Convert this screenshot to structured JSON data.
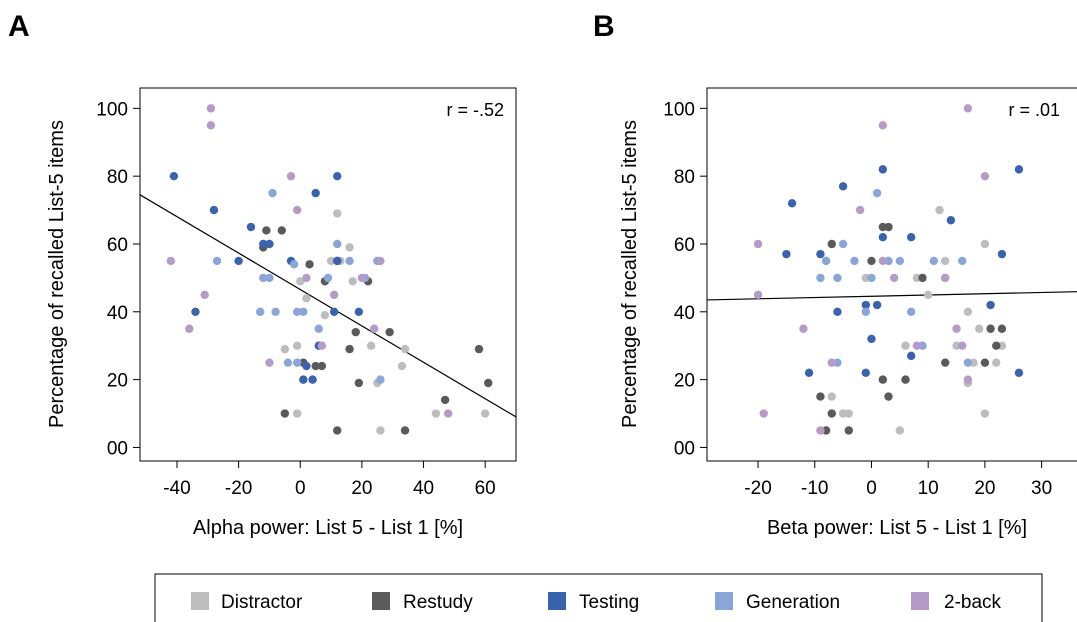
{
  "chart_data": [
    {
      "panel_label": "A",
      "type": "scatter",
      "xlabel": "Alpha power: List 5 - List 1 [%]",
      "ylabel": "Percentage of recalled List-5 items",
      "annotation": "r = -.52",
      "xlim": [
        -52,
        70
      ],
      "ylim": [
        -4,
        106
      ],
      "xticks": [
        -40,
        -20,
        0,
        20,
        40,
        60
      ],
      "xtick_labels": [
        "-40",
        "-20",
        "0",
        "20",
        "40",
        "60"
      ],
      "yticks": [
        0,
        20,
        40,
        60,
        80,
        100
      ],
      "ytick_labels": [
        "00",
        "20",
        "40",
        "60",
        "80",
        "100"
      ],
      "regression_line": {
        "x": [
          -52,
          70
        ],
        "y": [
          74.5,
          9
        ]
      },
      "series": [
        {
          "name": "Distractor",
          "points": [
            [
              -1,
              30
            ],
            [
              -5,
              29
            ],
            [
              -1,
              25
            ],
            [
              -1,
              10
            ],
            [
              0,
              49
            ],
            [
              2,
              44
            ],
            [
              8,
              39
            ],
            [
              10,
              55
            ],
            [
              12,
              69
            ],
            [
              13,
              55
            ],
            [
              16,
              59
            ],
            [
              17,
              49
            ],
            [
              23,
              30
            ],
            [
              25,
              19
            ],
            [
              26,
              5
            ],
            [
              33,
              24
            ],
            [
              34,
              29
            ],
            [
              44,
              10
            ],
            [
              60,
              10
            ]
          ]
        },
        {
          "name": "Restudy",
          "points": [
            [
              -12,
              59
            ],
            [
              -11,
              64
            ],
            [
              -6,
              64
            ],
            [
              -5,
              10
            ],
            [
              1,
              25
            ],
            [
              3,
              54
            ],
            [
              5,
              24
            ],
            [
              7,
              24
            ],
            [
              8,
              49
            ],
            [
              12,
              55
            ],
            [
              16,
              29
            ],
            [
              18,
              34
            ],
            [
              19,
              19
            ],
            [
              22,
              49
            ],
            [
              29,
              34
            ],
            [
              34,
              5
            ],
            [
              47,
              14
            ],
            [
              58,
              29
            ],
            [
              61,
              19
            ],
            [
              12,
              5
            ]
          ]
        },
        {
          "name": "Testing",
          "points": [
            [
              -41,
              80
            ],
            [
              -28,
              70
            ],
            [
              -16,
              65
            ],
            [
              -12,
              60
            ],
            [
              -10,
              60
            ],
            [
              -20,
              55
            ],
            [
              -3,
              55
            ],
            [
              5,
              75
            ],
            [
              12,
              80
            ],
            [
              1,
              20
            ],
            [
              4,
              20
            ],
            [
              2,
              24
            ],
            [
              6,
              30
            ],
            [
              11,
              40
            ],
            [
              12,
              55
            ],
            [
              19,
              40
            ],
            [
              -34,
              40
            ]
          ]
        },
        {
          "name": "Generation",
          "points": [
            [
              -27,
              55
            ],
            [
              -12,
              50
            ],
            [
              -9,
              75
            ],
            [
              -10,
              50
            ],
            [
              -13,
              40
            ],
            [
              -8,
              40
            ],
            [
              -2,
              54
            ],
            [
              -4,
              25
            ],
            [
              -1,
              25
            ],
            [
              -1,
              40
            ],
            [
              1,
              40
            ],
            [
              6,
              35
            ],
            [
              9,
              50
            ],
            [
              12,
              60
            ],
            [
              16,
              55
            ],
            [
              21,
              50
            ],
            [
              25,
              55
            ],
            [
              26,
              20
            ]
          ]
        },
        {
          "name": "2-back",
          "points": [
            [
              -29,
              100
            ],
            [
              -29,
              95
            ],
            [
              -42,
              55
            ],
            [
              -31,
              45
            ],
            [
              -36,
              35
            ],
            [
              -3,
              80
            ],
            [
              -1,
              70
            ],
            [
              2,
              50
            ],
            [
              11,
              45
            ],
            [
              20,
              50
            ],
            [
              -10,
              25
            ],
            [
              7,
              30
            ],
            [
              24,
              35
            ],
            [
              26,
              55
            ],
            [
              48,
              10
            ]
          ]
        }
      ]
    },
    {
      "panel_label": "B",
      "type": "scatter",
      "xlabel": "Beta power: List 5 - List 1 [%]",
      "ylabel": "Percentage of recalled List-5 items",
      "annotation": "r = .01",
      "xlim": [
        -29,
        38
      ],
      "ylim": [
        -4,
        106
      ],
      "xticks": [
        -20,
        -10,
        0,
        10,
        20,
        30
      ],
      "xtick_labels": [
        "-20",
        "-10",
        "0",
        "10",
        "20",
        "30"
      ],
      "yticks": [
        0,
        20,
        40,
        60,
        80,
        100
      ],
      "ytick_labels": [
        "00",
        "20",
        "40",
        "60",
        "80",
        "100"
      ],
      "regression_line": {
        "x": [
          -29,
          38
        ],
        "y": [
          43.5,
          46
        ]
      },
      "series": [
        {
          "name": "Distractor",
          "points": [
            [
              -8,
              55
            ],
            [
              -7,
              15
            ],
            [
              -5,
              10
            ],
            [
              -4,
              10
            ],
            [
              -1,
              50
            ],
            [
              5,
              5
            ],
            [
              6,
              30
            ],
            [
              8,
              50
            ],
            [
              10,
              45
            ],
            [
              12,
              70
            ],
            [
              13,
              55
            ],
            [
              15,
              30
            ],
            [
              17,
              19
            ],
            [
              17,
              40
            ],
            [
              18,
              25
            ],
            [
              19,
              35
            ],
            [
              20,
              60
            ],
            [
              20,
              10
            ],
            [
              22,
              25
            ],
            [
              23,
              30
            ]
          ]
        },
        {
          "name": "Restudy",
          "points": [
            [
              -9,
              15
            ],
            [
              -7,
              60
            ],
            [
              -7,
              10
            ],
            [
              -4,
              5
            ],
            [
              -8,
              5
            ],
            [
              0,
              55
            ],
            [
              2,
              20
            ],
            [
              2,
              65
            ],
            [
              3,
              65
            ],
            [
              3,
              15
            ],
            [
              6,
              20
            ],
            [
              9,
              50
            ],
            [
              13,
              25
            ],
            [
              20,
              25
            ],
            [
              21,
              35
            ],
            [
              22,
              30
            ],
            [
              23,
              35
            ]
          ]
        },
        {
          "name": "Testing",
          "points": [
            [
              -14,
              72
            ],
            [
              -15,
              57
            ],
            [
              -5,
              77
            ],
            [
              -9,
              57
            ],
            [
              -6,
              40
            ],
            [
              -11,
              22
            ],
            [
              -1,
              42
            ],
            [
              0,
              32
            ],
            [
              1,
              42
            ],
            [
              2,
              82
            ],
            [
              2,
              62
            ],
            [
              7,
              62
            ],
            [
              7,
              27
            ],
            [
              14,
              67
            ],
            [
              21,
              42
            ],
            [
              23,
              57
            ],
            [
              26,
              82
            ],
            [
              26,
              22
            ],
            [
              -1,
              22
            ]
          ]
        },
        {
          "name": "Generation",
          "points": [
            [
              -9,
              50
            ],
            [
              -8,
              55
            ],
            [
              -5,
              60
            ],
            [
              -6,
              50
            ],
            [
              -3,
              55
            ],
            [
              -1,
              40
            ],
            [
              0,
              50
            ],
            [
              1,
              75
            ],
            [
              3,
              55
            ],
            [
              5,
              55
            ],
            [
              7,
              40
            ],
            [
              9,
              30
            ],
            [
              11,
              55
            ],
            [
              13,
              50
            ],
            [
              16,
              55
            ],
            [
              17,
              25
            ],
            [
              -6,
              25
            ]
          ]
        },
        {
          "name": "2-back",
          "points": [
            [
              -20,
              60
            ],
            [
              -19,
              10
            ],
            [
              -12,
              35
            ],
            [
              -7,
              25
            ],
            [
              -2,
              70
            ],
            [
              2,
              95
            ],
            [
              2,
              55
            ],
            [
              4,
              50
            ],
            [
              8,
              30
            ],
            [
              13,
              50
            ],
            [
              15,
              35
            ],
            [
              16,
              30
            ],
            [
              17,
              20
            ],
            [
              17,
              100
            ],
            [
              20,
              80
            ],
            [
              -20,
              45
            ],
            [
              -9,
              5
            ]
          ]
        }
      ]
    }
  ],
  "legend": {
    "items": [
      {
        "label": "Distractor",
        "color": "#bdbdbd"
      },
      {
        "label": "Restudy",
        "color": "#5a5a5a"
      },
      {
        "label": "Testing",
        "color": "#3a63ad"
      },
      {
        "label": "Generation",
        "color": "#8aa6d8"
      },
      {
        "label": "2-back",
        "color": "#b69ac8"
      }
    ]
  },
  "colors": {
    "Distractor": "#bdbdbd",
    "Restudy": "#5a5a5a",
    "Testing": "#3a63ad",
    "Generation": "#8aa6d8",
    "2-back": "#b69ac8"
  }
}
